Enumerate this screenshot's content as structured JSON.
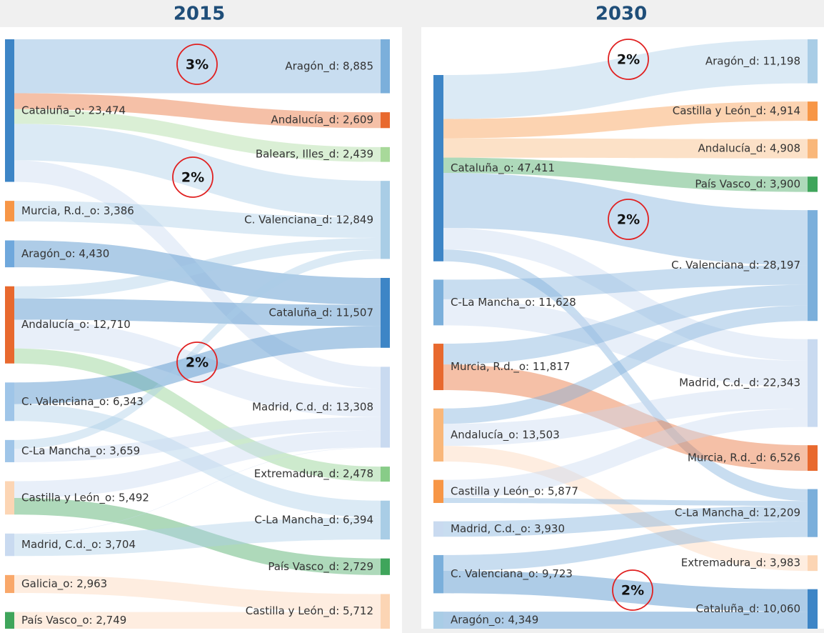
{
  "chart_data": [
    {
      "type": "sankey",
      "title": "2015",
      "source_nodes": [
        {
          "label": "Cataluña_o: 23,474",
          "value": 23474,
          "color": "#3d85c6"
        },
        {
          "label": "Murcia, R.d._o: 3,386",
          "value": 3386,
          "color": "#f79646"
        },
        {
          "label": "Aragón_o: 4,430",
          "value": 4430,
          "color": "#6fa8dc"
        },
        {
          "label": "Andalucía_o: 12,710",
          "value": 12710,
          "color": "#e8692e"
        },
        {
          "label": "C. Valenciana_o: 6,343",
          "value": 6343,
          "color": "#9fc5e8"
        },
        {
          "label": "C-La Mancha_o: 3,659",
          "value": 3659,
          "color": "#9fc5e8"
        },
        {
          "label": "Castilla y León_o: 5,492",
          "value": 5492,
          "color": "#fcd5b4"
        },
        {
          "label": "Madrid, C.d._o: 3,704",
          "value": 3704,
          "color": "#c9daf0"
        },
        {
          "label": "Galicia_o: 2,963",
          "value": 2963,
          "color": "#f9a86a"
        },
        {
          "label": "País Vasco_o: 2,749",
          "value": 2749,
          "color": "#3fa55b"
        }
      ],
      "target_nodes": [
        {
          "label": "Aragón_d: 8,885",
          "value": 8885,
          "color": "#7bafdb"
        },
        {
          "label": "Andalucía_d: 2,609",
          "value": 2609,
          "color": "#e8692e"
        },
        {
          "label": "Balears, Illes_d: 2,439",
          "value": 2439,
          "color": "#a8d99a"
        },
        {
          "label": "C. Valenciana_d: 12,849",
          "value": 12849,
          "color": "#a9cde6"
        },
        {
          "label": "Cataluña_d: 11,507",
          "value": 11507,
          "color": "#3d85c6"
        },
        {
          "label": "Madrid, C.d._d: 13,308",
          "value": 13308,
          "color": "#c9daf0"
        },
        {
          "label": "Extremadura_d: 2,478",
          "value": 2478,
          "color": "#88cc88"
        },
        {
          "label": "C-La Mancha_d: 6,394",
          "value": 6394,
          "color": "#a9cde6"
        },
        {
          "label": "País Vasco_d: 2,729",
          "value": 2729,
          "color": "#3fa55b"
        },
        {
          "label": "Castilla y León_d: 5,712",
          "value": 5712,
          "color": "#fcd5b4"
        }
      ],
      "links": [
        {
          "source": 0,
          "target": 0,
          "value": 8885
        },
        {
          "source": 0,
          "target": 1,
          "value": 2609
        },
        {
          "source": 0,
          "target": 2,
          "value": 2439
        },
        {
          "source": 0,
          "target": 3,
          "value": 6000
        },
        {
          "source": 0,
          "target": 5,
          "value": 3541
        },
        {
          "source": 1,
          "target": 3,
          "value": 3386
        },
        {
          "source": 2,
          "target": 4,
          "value": 4430
        },
        {
          "source": 3,
          "target": 3,
          "value": 2000
        },
        {
          "source": 3,
          "target": 4,
          "value": 3500
        },
        {
          "source": 3,
          "target": 5,
          "value": 4732
        },
        {
          "source": 3,
          "target": 6,
          "value": 2478
        },
        {
          "source": 4,
          "target": 4,
          "value": 3577
        },
        {
          "source": 4,
          "target": 7,
          "value": 2766
        },
        {
          "source": 5,
          "target": 3,
          "value": 1463
        },
        {
          "source": 5,
          "target": 5,
          "value": 2196
        },
        {
          "source": 6,
          "target": 5,
          "value": 2763
        },
        {
          "source": 6,
          "target": 8,
          "value": 2729
        },
        {
          "source": 7,
          "target": 5,
          "value": 76
        },
        {
          "source": 7,
          "target": 7,
          "value": 3628
        },
        {
          "source": 8,
          "target": 9,
          "value": 2963
        },
        {
          "source": 9,
          "target": 9,
          "value": 2749
        }
      ],
      "annotations": [
        "3%",
        "2%",
        "2%"
      ]
    },
    {
      "type": "sankey",
      "title": "2030",
      "source_nodes": [
        {
          "label": "Cataluña_o: 47,411",
          "value": 47411,
          "color": "#3d85c6"
        },
        {
          "label": "C-La Mancha_o: 11,628",
          "value": 11628,
          "color": "#7bafdb"
        },
        {
          "label": "Murcia, R.d._o: 11,817",
          "value": 11817,
          "color": "#e8692e"
        },
        {
          "label": "Andalucía_o: 13,503",
          "value": 13503,
          "color": "#f9b77a"
        },
        {
          "label": "Castilla y León_o: 5,877",
          "value": 5877,
          "color": "#f79646"
        },
        {
          "label": "Madrid, C.d._o: 3,930",
          "value": 3930,
          "color": "#c9daf0"
        },
        {
          "label": "C. Valenciana_o: 9,723",
          "value": 9723,
          "color": "#7bafdb"
        },
        {
          "label": "Aragón_o: 4,349",
          "value": 4349,
          "color": "#a9cde6"
        }
      ],
      "target_nodes": [
        {
          "label": "Aragón_d: 11,198",
          "value": 11198,
          "color": "#a9cde6"
        },
        {
          "label": "Castilla y León_d: 4,914",
          "value": 4914,
          "color": "#f79646"
        },
        {
          "label": "Andalucía_d: 4,908",
          "value": 4908,
          "color": "#f9b77a"
        },
        {
          "label": "País Vasco_d: 3,900",
          "value": 3900,
          "color": "#3fa55b"
        },
        {
          "label": "C. Valenciana_d: 28,197",
          "value": 28197,
          "color": "#7bafdb"
        },
        {
          "label": "Madrid, C.d._d: 22,343",
          "value": 22343,
          "color": "#c9daf0"
        },
        {
          "label": "Murcia, R.d._d: 6,526",
          "value": 6526,
          "color": "#e8692e"
        },
        {
          "label": "C-La Mancha_d: 12,209",
          "value": 12209,
          "color": "#7bafdb"
        },
        {
          "label": "Extremadura_d: 3,983",
          "value": 3983,
          "color": "#fcd5b4"
        },
        {
          "label": "Cataluña_d: 10,060",
          "value": 10060,
          "color": "#3d85c6"
        }
      ],
      "links": [
        {
          "source": 0,
          "target": 0,
          "value": 11198
        },
        {
          "source": 0,
          "target": 1,
          "value": 4914
        },
        {
          "source": 0,
          "target": 2,
          "value": 4908
        },
        {
          "source": 0,
          "target": 3,
          "value": 3900
        },
        {
          "source": 0,
          "target": 4,
          "value": 14000
        },
        {
          "source": 0,
          "target": 5,
          "value": 5491
        },
        {
          "source": 0,
          "target": 7,
          "value": 3000
        },
        {
          "source": 1,
          "target": 4,
          "value": 5000
        },
        {
          "source": 1,
          "target": 5,
          "value": 6628
        },
        {
          "source": 2,
          "target": 4,
          "value": 5291
        },
        {
          "source": 2,
          "target": 6,
          "value": 6526
        },
        {
          "source": 3,
          "target": 4,
          "value": 3906
        },
        {
          "source": 3,
          "target": 5,
          "value": 5614
        },
        {
          "source": 3,
          "target": 8,
          "value": 3983
        },
        {
          "source": 4,
          "target": 5,
          "value": 4610
        },
        {
          "source": 4,
          "target": 7,
          "value": 1267
        },
        {
          "source": 5,
          "target": 7,
          "value": 3930
        },
        {
          "source": 6,
          "target": 7,
          "value": 4012
        },
        {
          "source": 6,
          "target": 9,
          "value": 5711
        },
        {
          "source": 7,
          "target": 9,
          "value": 4349
        }
      ],
      "annotations": [
        "2%",
        "2%",
        "2%"
      ]
    }
  ]
}
